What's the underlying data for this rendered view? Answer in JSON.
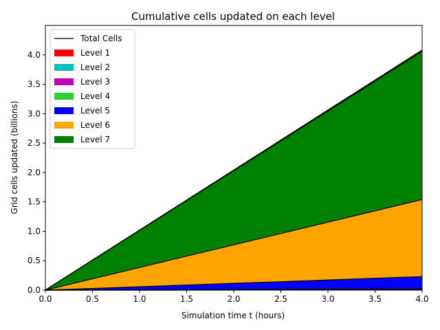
{
  "chart_data": {
    "type": "area",
    "title": "Cumulative cells updated on each level",
    "xlabel": "Simulation time t (hours)",
    "ylabel": "Grid cells updated (billions)",
    "xlim": [
      0.0,
      4.0
    ],
    "ylim": [
      0.0,
      4.5
    ],
    "x": [
      0.0,
      4.0
    ],
    "xticks": [
      0.0,
      0.5,
      1.0,
      1.5,
      2.0,
      2.5,
      3.0,
      3.5,
      4.0
    ],
    "xtick_labels": [
      "0.0",
      "0.5",
      "1.0",
      "1.5",
      "2.0",
      "2.5",
      "3.0",
      "3.5",
      "4.0"
    ],
    "yticks": [
      0.0,
      0.5,
      1.0,
      1.5,
      2.0,
      2.5,
      3.0,
      3.5,
      4.0
    ],
    "ytick_labels": [
      "0.0",
      "0.5",
      "1.0",
      "1.5",
      "2.0",
      "2.5",
      "3.0",
      "3.5",
      "4.0"
    ],
    "stacked": true,
    "series": [
      {
        "name": "Level 1",
        "color": "#ff0000",
        "values": [
          0.0,
          0.001
        ]
      },
      {
        "name": "Level 2",
        "color": "#00bfbf",
        "values": [
          0.0,
          0.002
        ]
      },
      {
        "name": "Level 3",
        "color": "#bf00bf",
        "values": [
          0.0,
          0.005
        ]
      },
      {
        "name": "Level 4",
        "color": "#33cc33",
        "values": [
          0.0,
          0.012
        ]
      },
      {
        "name": "Level 5",
        "color": "#0000ff",
        "values": [
          0.0,
          0.21
        ]
      },
      {
        "name": "Level 6",
        "color": "#ffa500",
        "values": [
          0.0,
          1.31
        ]
      },
      {
        "name": "Level 7",
        "color": "#008000",
        "values": [
          0.0,
          2.52
        ]
      }
    ],
    "total_line": {
      "name": "Total Cells",
      "color": "#000000",
      "values": [
        0.0,
        4.08
      ]
    },
    "legend_position": "upper-left",
    "grid": false
  }
}
